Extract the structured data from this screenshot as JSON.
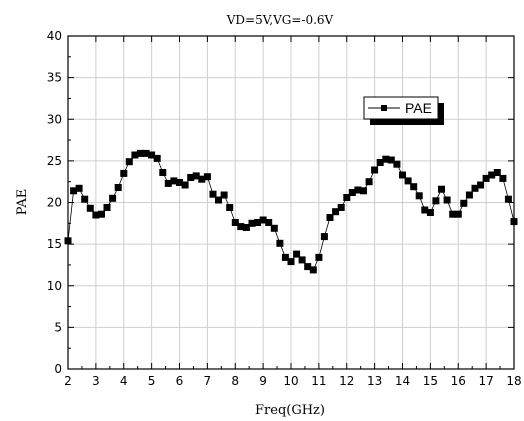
{
  "chart_data": {
    "type": "line",
    "title": "VD=5V,VG=-0.6V",
    "xlabel": "Freq(GHz)",
    "ylabel": "PAE",
    "xlim": [
      2,
      18
    ],
    "ylim": [
      0,
      40
    ],
    "xticks": [
      2,
      3,
      4,
      5,
      6,
      7,
      8,
      9,
      10,
      11,
      12,
      13,
      14,
      15,
      16,
      17,
      18
    ],
    "yticks": [
      0,
      5,
      10,
      15,
      20,
      25,
      30,
      35,
      40
    ],
    "grid": true,
    "legend_position": "upper-right",
    "marker": "square",
    "series": [
      {
        "name": "PAE",
        "color": "#000000",
        "x": [
          2.0,
          2.2,
          2.4,
          2.6,
          2.8,
          3.0,
          3.2,
          3.4,
          3.6,
          3.8,
          4.0,
          4.2,
          4.4,
          4.6,
          4.8,
          5.0,
          5.2,
          5.4,
          5.6,
          5.8,
          6.0,
          6.2,
          6.4,
          6.6,
          6.8,
          7.0,
          7.2,
          7.4,
          7.6,
          7.8,
          8.0,
          8.2,
          8.4,
          8.6,
          8.8,
          9.0,
          9.2,
          9.4,
          9.6,
          9.8,
          10.0,
          10.2,
          10.4,
          10.6,
          10.8,
          11.0,
          11.2,
          11.4,
          11.6,
          11.8,
          12.0,
          12.2,
          12.4,
          12.6,
          12.8,
          13.0,
          13.2,
          13.4,
          13.6,
          13.8,
          14.0,
          14.2,
          14.4,
          14.6,
          14.8,
          15.0,
          15.2,
          15.4,
          15.6,
          15.8,
          16.0,
          16.2,
          16.4,
          16.6,
          16.8,
          17.0,
          17.2,
          17.4,
          17.6,
          17.8,
          18.0
        ],
        "y": [
          15.4,
          21.4,
          21.7,
          20.4,
          19.3,
          18.5,
          18.6,
          19.4,
          20.5,
          21.8,
          23.5,
          24.9,
          25.7,
          25.9,
          25.9,
          25.7,
          25.3,
          23.6,
          22.3,
          22.6,
          22.4,
          22.1,
          23.0,
          23.2,
          22.8,
          23.1,
          21.0,
          20.3,
          20.9,
          19.4,
          17.6,
          17.1,
          17.0,
          17.5,
          17.6,
          17.9,
          17.6,
          16.9,
          15.1,
          13.4,
          12.9,
          13.8,
          13.1,
          12.3,
          11.9,
          13.4,
          15.9,
          18.2,
          18.9,
          19.4,
          20.6,
          21.2,
          21.5,
          21.4,
          22.5,
          23.9,
          24.8,
          25.2,
          25.1,
          24.6,
          23.3,
          22.6,
          21.9,
          20.8,
          19.1,
          18.8,
          20.2,
          21.6,
          20.3,
          18.6,
          18.6,
          19.9,
          20.9,
          21.7,
          22.1,
          22.9,
          23.3,
          23.6,
          22.9,
          20.4,
          17.7
        ]
      }
    ]
  }
}
